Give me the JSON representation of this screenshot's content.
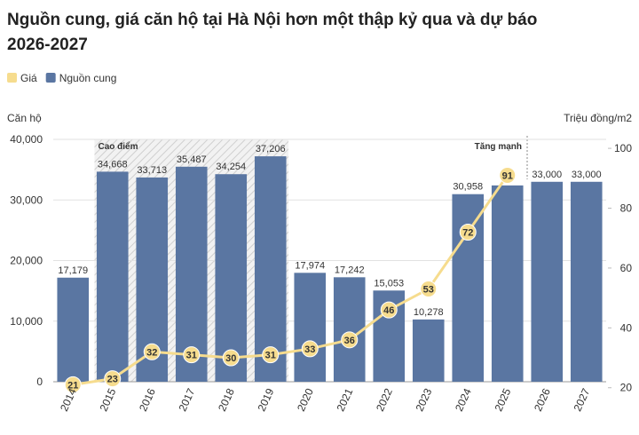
{
  "chart_data": {
    "type": "bar_line",
    "title": "Nguồn cung, giá căn hộ tại Hà Nội hơn một thập kỷ qua và dự báo 2026-2027",
    "ylabel": "Căn hộ",
    "y2label": "Triệu đồng/m2",
    "categories": [
      "2014",
      "2015",
      "2016",
      "2017",
      "2018",
      "2019",
      "2020",
      "2021",
      "2022",
      "2023",
      "2024",
      "2025",
      "2026",
      "2027"
    ],
    "series": [
      {
        "name": "Giá",
        "type": "line",
        "axis": "y2",
        "color": "#f6dc8e",
        "values": [
          21,
          23,
          32,
          31,
          30,
          31,
          33,
          36,
          46,
          53,
          72,
          91,
          null,
          null
        ]
      },
      {
        "name": "Nguồn cung",
        "type": "bar",
        "color": "#5a76a2",
        "values": [
          17179,
          34668,
          33713,
          35487,
          34254,
          37206,
          17974,
          17242,
          15053,
          10278,
          30958,
          32400,
          33000,
          33000
        ],
        "value_labels": [
          "17,179",
          "34,668",
          "33,713",
          "35,487",
          "34,254",
          "37,206",
          "17,974",
          "17,242",
          "15,053",
          "10,278",
          "30,958",
          null,
          "33,000",
          "33,000"
        ]
      }
    ],
    "legend_order": [
      0,
      1
    ],
    "ylim": [
      0,
      40000
    ],
    "yticks": [
      0,
      {
        "value": 10000,
        "label": "10,000"
      },
      {
        "value": 20000,
        "label": "20,000"
      },
      {
        "value": 30000,
        "label": "30,000"
      },
      {
        "value": 40000,
        "label": "40,000"
      }
    ],
    "y2lim": [
      22,
      103
    ],
    "y2ticks": [
      20,
      40,
      60,
      80,
      100
    ],
    "grid": true,
    "annotations": [
      {
        "text": "Cao điểm",
        "from": "2015",
        "to": "2019"
      },
      {
        "text": "Tăng mạnh",
        "after": "2025"
      }
    ]
  }
}
